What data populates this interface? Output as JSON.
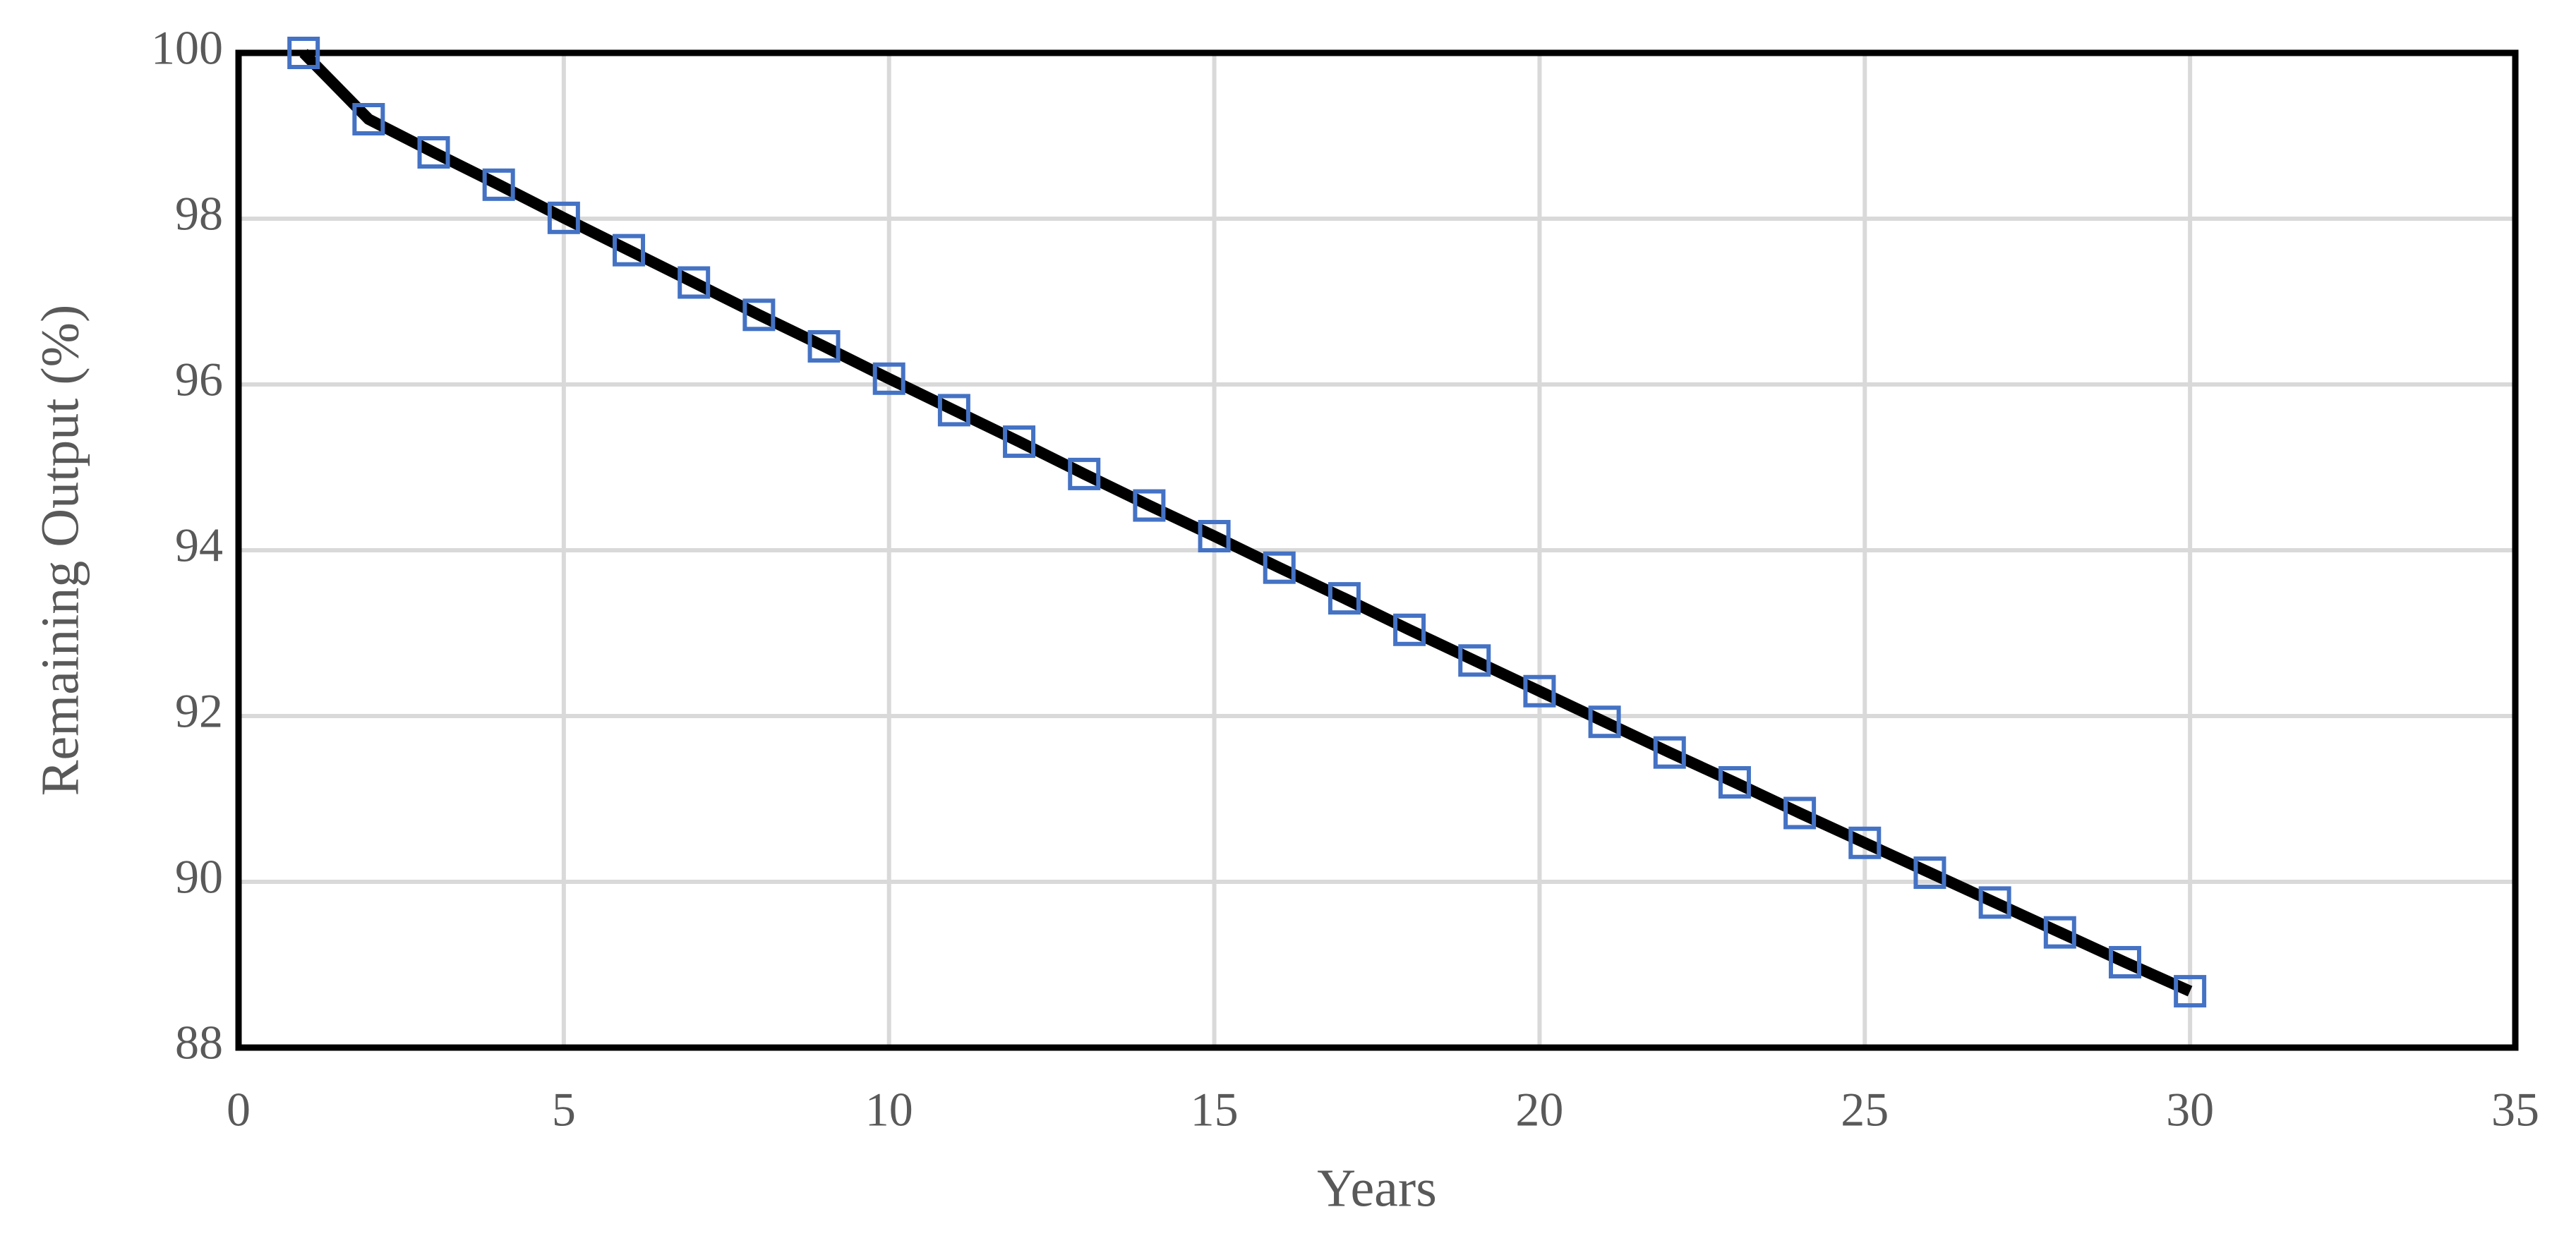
{
  "chart_data": {
    "type": "line",
    "x_label": "Years",
    "y_label": "Remaining Output (%)",
    "x": [
      1,
      2,
      3,
      4,
      5,
      6,
      7,
      8,
      9,
      10,
      11,
      12,
      13,
      14,
      15,
      16,
      17,
      18,
      19,
      20,
      21,
      22,
      23,
      24,
      25,
      26,
      27,
      28,
      29,
      30
    ],
    "series": [
      {
        "color": "#000000",
        "marker_color": "#4472c4",
        "values": [
          100,
          99.2,
          98.8,
          98.41,
          98.01,
          97.62,
          97.23,
          96.84,
          96.46,
          96.07,
          95.69,
          95.31,
          94.92,
          94.54,
          94.17,
          93.79,
          93.42,
          93.04,
          92.67,
          92.3,
          91.93,
          91.56,
          91.2,
          90.83,
          90.47,
          90.11,
          89.75,
          89.39,
          89.03,
          88.68
        ]
      }
    ],
    "xlim": [
      0,
      35
    ],
    "xticks": [
      0,
      5,
      10,
      15,
      20,
      25,
      30,
      35
    ],
    "ylim": [
      88,
      100
    ],
    "yticks": [
      88,
      90,
      92,
      94,
      96,
      98,
      100
    ],
    "grid": true
  }
}
